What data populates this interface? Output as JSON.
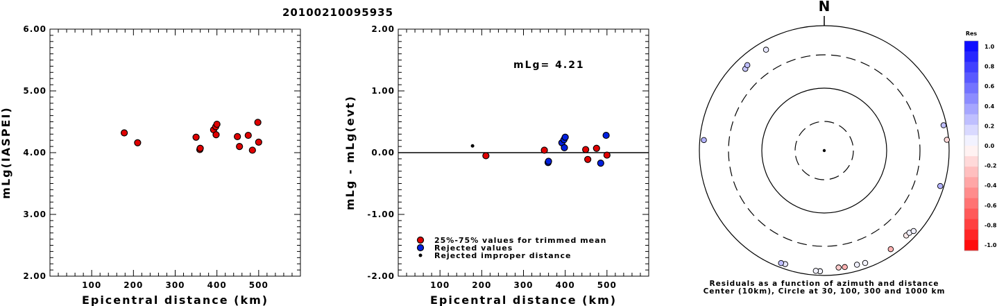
{
  "title": "20100210095935",
  "chart_data": [
    {
      "type": "scatter",
      "xlabel": "Epicentral distance (km)",
      "ylabel": "mLg(IASPEI)",
      "xlim": [
        0,
        600
      ],
      "ylim": [
        2.0,
        6.0
      ],
      "xticks": [
        "100",
        "200",
        "300",
        "400",
        "500"
      ],
      "yticks": [
        "2.00",
        "3.00",
        "4.00",
        "5.00",
        "6.00"
      ],
      "points": [
        {
          "x": 178,
          "y": 4.32
        },
        {
          "x": 210,
          "y": 4.16
        },
        {
          "x": 350,
          "y": 4.25
        },
        {
          "x": 359,
          "y": 4.05
        },
        {
          "x": 360,
          "y": 4.07
        },
        {
          "x": 392,
          "y": 4.37
        },
        {
          "x": 397,
          "y": 4.42
        },
        {
          "x": 400,
          "y": 4.46
        },
        {
          "x": 398,
          "y": 4.29
        },
        {
          "x": 449,
          "y": 4.26
        },
        {
          "x": 454,
          "y": 4.1
        },
        {
          "x": 475,
          "y": 4.28
        },
        {
          "x": 485,
          "y": 4.04
        },
        {
          "x": 498,
          "y": 4.49
        },
        {
          "x": 500,
          "y": 4.17
        }
      ]
    },
    {
      "type": "scatter",
      "xlabel": "Epicentral distance (km)",
      "ylabel": "mLg - mLg(evt)",
      "xlim": [
        0,
        600
      ],
      "ylim": [
        -2.0,
        2.0
      ],
      "xticks": [
        "100",
        "200",
        "300",
        "400",
        "500"
      ],
      "yticks": [
        "-2.00",
        "-1.00",
        "0.00",
        "1.00",
        "2.00"
      ],
      "annotation": "mLg= 4.21",
      "zero_line": true,
      "legend": {
        "position": "bottom-left",
        "entries": [
          {
            "label": "25%-75% values for trimmed mean",
            "color": "#e00000"
          },
          {
            "label": "Rejected values",
            "color": "#0020e0"
          },
          {
            "label": "Rejected improper distance",
            "color": "#000000"
          }
        ]
      },
      "series": [
        {
          "name": "25%-75% values for trimmed mean",
          "color": "#e00000",
          "points": [
            {
              "x": 210,
              "y": -0.05
            },
            {
              "x": 350,
              "y": 0.04
            },
            {
              "x": 449,
              "y": 0.05
            },
            {
              "x": 454,
              "y": -0.11
            },
            {
              "x": 475,
              "y": 0.07
            },
            {
              "x": 500,
              "y": -0.04
            }
          ]
        },
        {
          "name": "Rejected values",
          "color": "#0020e0",
          "points": [
            {
              "x": 359,
              "y": -0.16
            },
            {
              "x": 360,
              "y": -0.14
            },
            {
              "x": 392,
              "y": 0.16
            },
            {
              "x": 397,
              "y": 0.21
            },
            {
              "x": 400,
              "y": 0.25
            },
            {
              "x": 398,
              "y": 0.08
            },
            {
              "x": 485,
              "y": -0.17
            },
            {
              "x": 498,
              "y": 0.28
            }
          ]
        },
        {
          "name": "Rejected improper distance",
          "color": "#000000",
          "points": [
            {
              "x": 178,
              "y": 0.11
            }
          ]
        }
      ]
    },
    {
      "type": "scatter",
      "kind": "polar",
      "north_label": "N",
      "caption_lines": [
        "Residuals as a function of azimuth and distance",
        "Center (10km), Circle at 30, 100, 300 and 1000 km"
      ],
      "rings_km": [
        30,
        100,
        300,
        1000
      ],
      "ring_styles": [
        "dashed",
        "solid",
        "dashed",
        "solid"
      ],
      "colorbar": {
        "title": "Res",
        "ticks": [
          "1.0",
          "0.8",
          "0.6",
          "0.4",
          "0.2",
          "0.0",
          "-0.2",
          "-0.4",
          "-0.6",
          "-0.8",
          "-1.0"
        ],
        "range": [
          -1.0,
          1.0
        ],
        "high_color": "#0000ff",
        "low_color": "#ff0000"
      },
      "points": [
        {
          "azimuth": 330,
          "distance": 705,
          "res": 0.1
        },
        {
          "azimuth": 316,
          "distance": 628,
          "res": 0.22
        },
        {
          "azimuth": 318,
          "distance": 663,
          "res": 0.25
        },
        {
          "azimuth": 275,
          "distance": 846,
          "res": 0.3
        },
        {
          "azimuth": 78,
          "distance": 887,
          "res": 0.25
        },
        {
          "azimuth": 85,
          "distance": 929,
          "res": -0.15
        },
        {
          "azimuth": 107,
          "distance": 863,
          "res": 0.3
        },
        {
          "azimuth": 136,
          "distance": 754,
          "res": -0.08
        },
        {
          "azimuth": 134,
          "distance": 763,
          "res": 0.06
        },
        {
          "azimuth": 132,
          "distance": 825,
          "res": 0.06
        },
        {
          "azimuth": 146,
          "distance": 781,
          "res": -0.3
        },
        {
          "azimuth": 160,
          "distance": 805,
          "res": 0.04
        },
        {
          "azimuth": 164,
          "distance": 775,
          "res": 0.06
        },
        {
          "azimuth": 170,
          "distance": 762,
          "res": -0.3
        },
        {
          "azimuth": 173,
          "distance": 747,
          "res": -0.2
        },
        {
          "azimuth": 182,
          "distance": 843,
          "res": 0.05
        },
        {
          "azimuth": 184,
          "distance": 838,
          "res": 0.05
        },
        {
          "azimuth": 199,
          "distance": 818,
          "res": 0.1
        },
        {
          "azimuth": 201,
          "distance": 834,
          "res": 0.25
        }
      ]
    }
  ]
}
